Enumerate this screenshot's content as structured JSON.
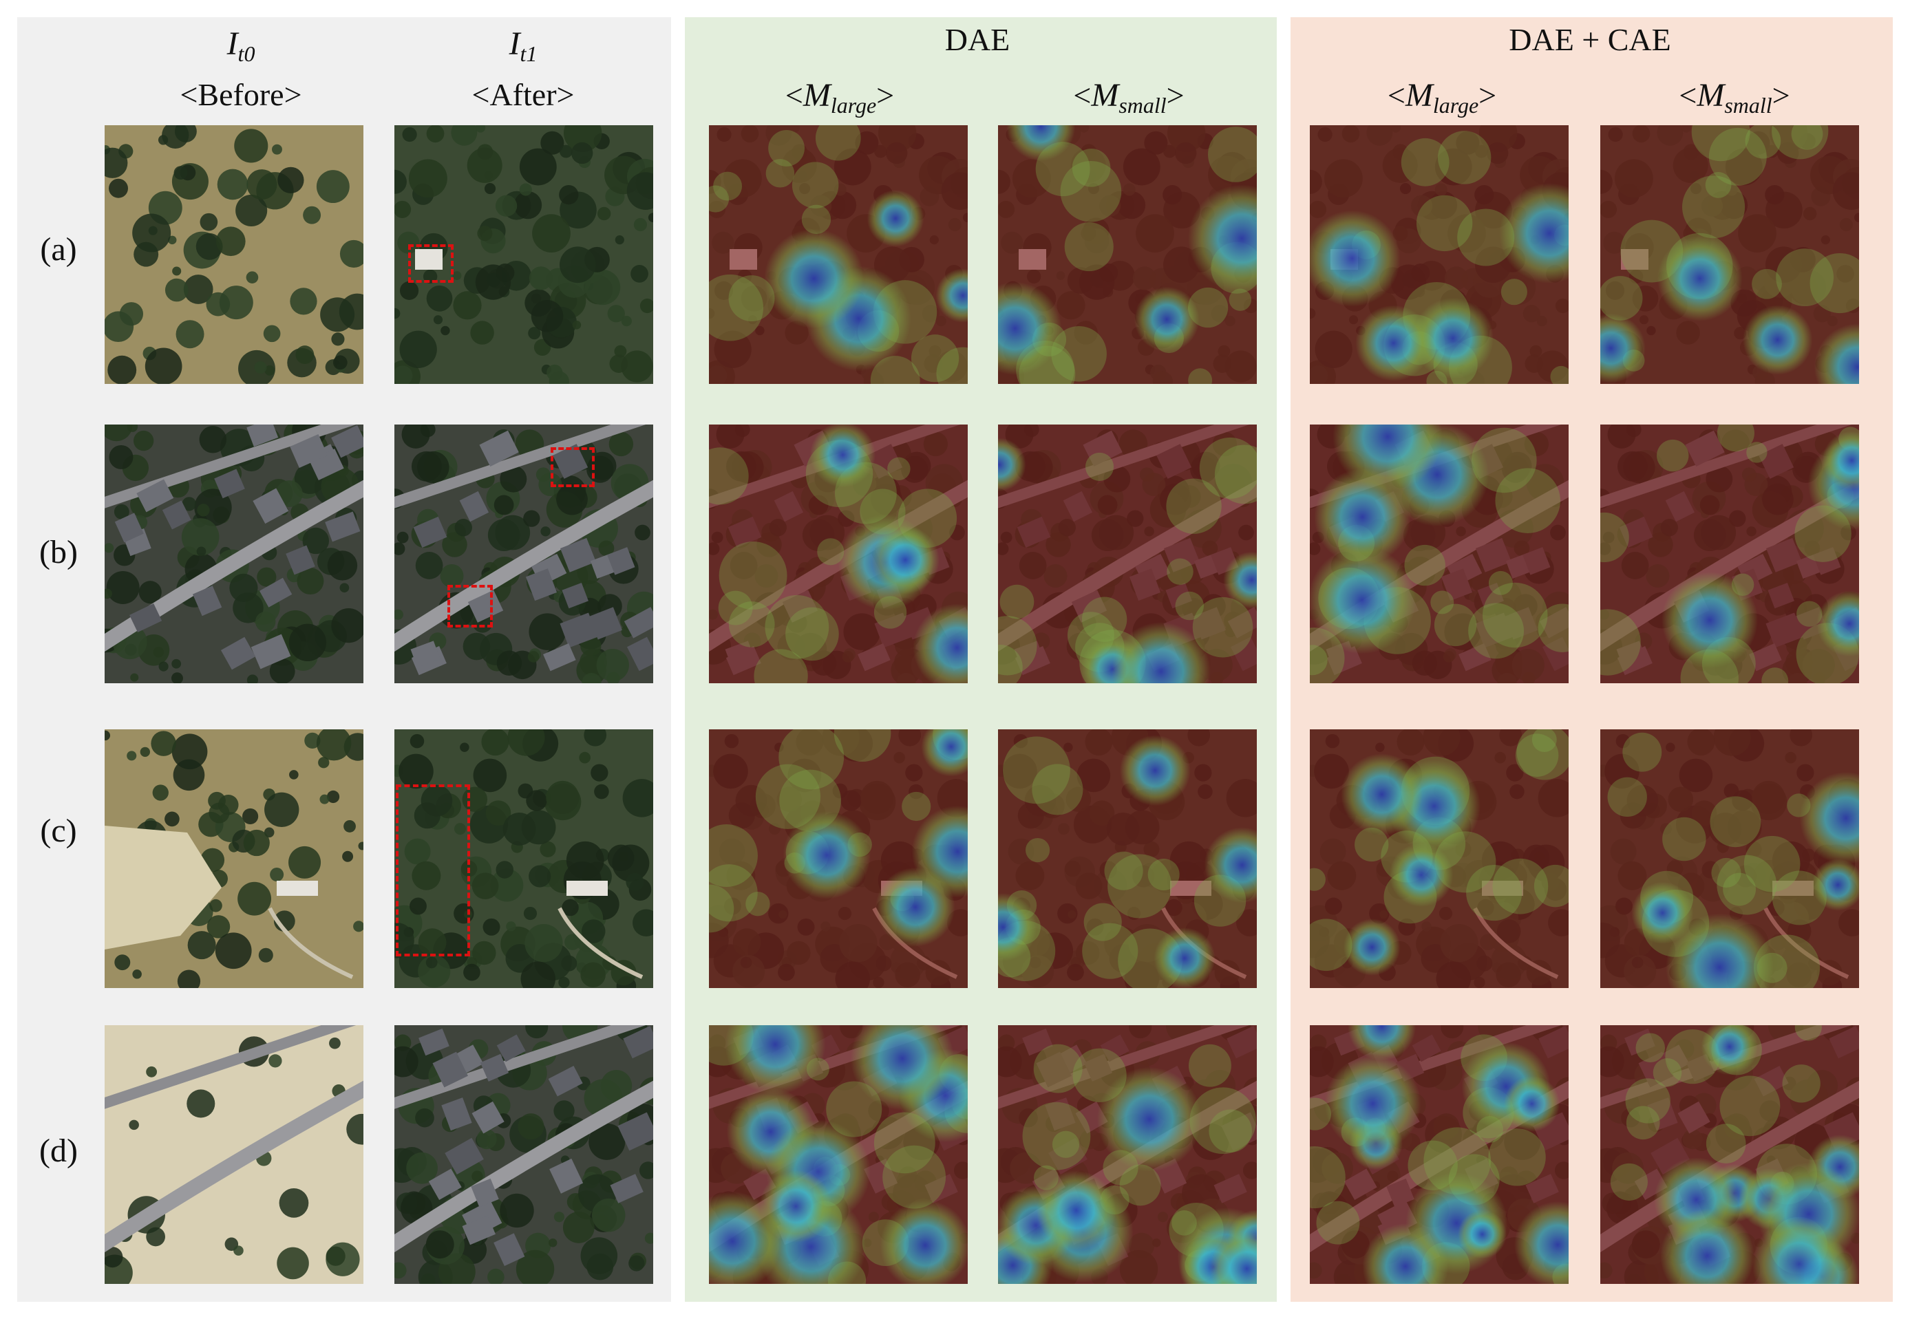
{
  "headers": {
    "col_t0_symbol": "I",
    "col_t0_sub": "t0",
    "col_t0_caption": "<Before>",
    "col_t1_symbol": "I",
    "col_t1_sub": "t1",
    "col_t1_caption": "<After>",
    "dae_title": "DAE",
    "dae_cae_title": "DAE + CAE",
    "m_large_symbol": "M",
    "m_large_sub": "large",
    "m_small_symbol": "M",
    "m_small_sub": "small"
  },
  "rows": [
    {
      "label": "(a)"
    },
    {
      "label": "(b)"
    },
    {
      "label": "(c)"
    },
    {
      "label": "(d)"
    }
  ],
  "colors": {
    "input_panel_bg": "#f0f0f0",
    "dae_panel_bg": "#e3eedc",
    "cae_panel_bg": "#f9e2d6",
    "change_box": "#dd1111",
    "heat_low": "#7a1a1a",
    "heat_mid": "#7fa84a",
    "heat_high": "#2a3fb0"
  }
}
